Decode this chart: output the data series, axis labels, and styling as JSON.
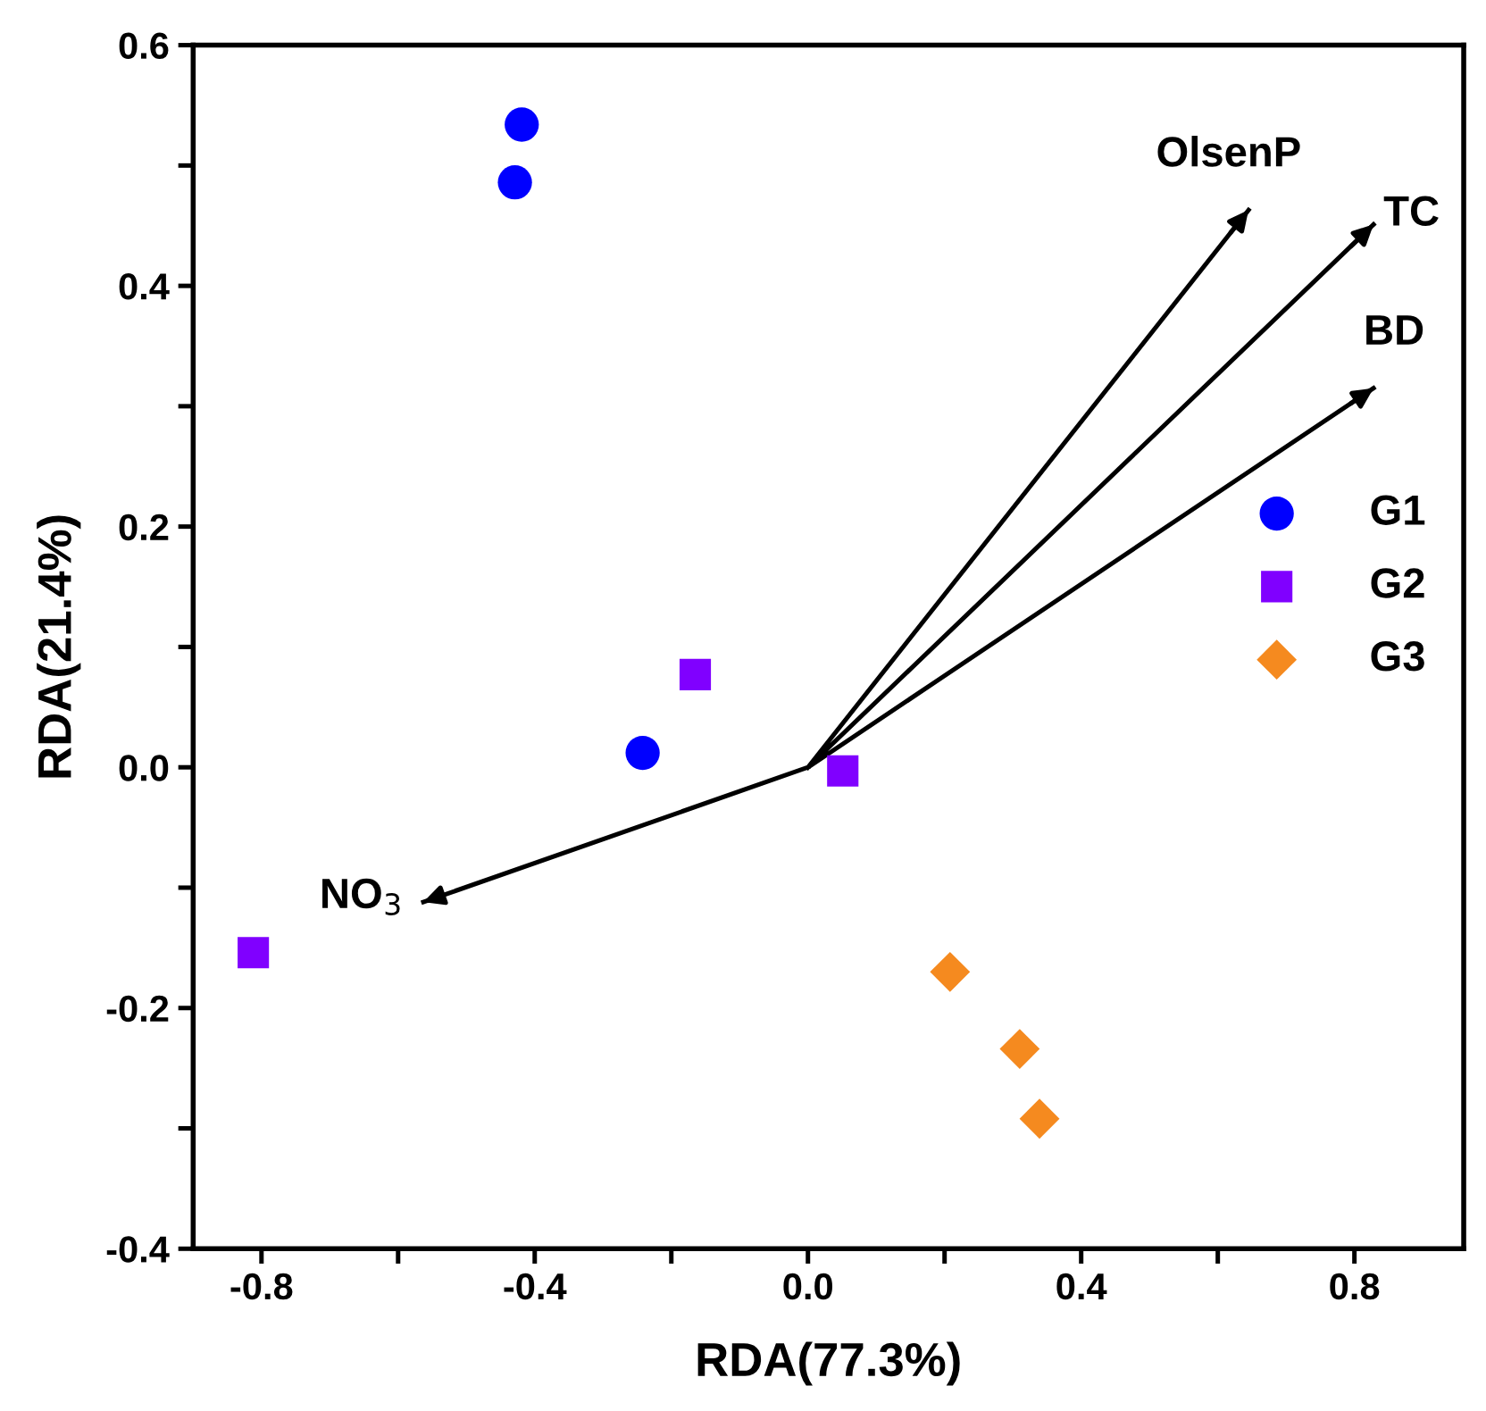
{
  "chart_data": {
    "type": "scatter",
    "xlabel": "RDA(77.3%)",
    "ylabel": "RDA(21.4%)",
    "series": [
      {
        "name": "G1",
        "color": "#0000ff",
        "marker": "circle",
        "x": [
          -0.419,
          -0.429,
          -0.242
        ],
        "values": [
          0.534,
          0.486,
          0.012
        ]
      },
      {
        "name": "G2",
        "color": "#8000ff",
        "marker": "square",
        "x": [
          -0.165,
          0.051,
          -0.812
        ],
        "values": [
          0.077,
          -0.003,
          -0.154
        ]
      },
      {
        "name": "G3",
        "color": "#f58a1f",
        "marker": "diamond",
        "x": [
          0.208,
          0.31,
          0.339
        ],
        "values": [
          -0.17,
          -0.234,
          -0.292
        ]
      },
      {
        "type": "line",
        "color": "#000000",
        "marker": "none",
        "x": [
          0,
          0.645,
          null,
          0,
          0.828,
          null,
          0,
          0.828,
          null,
          0,
          -0.563
        ],
        "values": [
          0,
          0.463,
          null,
          0,
          0.451,
          null,
          0,
          0.315,
          null,
          0,
          -0.112
        ]
      }
    ],
    "annotations": [
      "OlsenP",
      "TC",
      "BD",
      "NO$_{3}$"
    ],
    "xlim": [
      -0.9,
      0.96
    ],
    "ylim": [
      -0.4,
      0.6
    ],
    "xticks": [
      -0.8,
      {
        "value": -0.6,
        "label": null
      },
      -0.4,
      {
        "value": -0.2,
        "label": null
      },
      {
        "value": 0,
        "label": "0.0"
      },
      {
        "value": 0.2,
        "label": null
      },
      0.4,
      {
        "value": 0.6,
        "label": null
      },
      0.8
    ],
    "yticks": [
      -0.4,
      {
        "value": -0.3,
        "label": null
      },
      -0.2,
      {
        "value": -0.1,
        "label": null
      },
      {
        "value": 0,
        "label": "0.0"
      },
      {
        "value": 0.1,
        "label": null
      },
      0.2,
      {
        "value": 0.3,
        "label": null
      },
      0.4,
      {
        "value": 0.5,
        "label": null
      },
      0.6
    ],
    "grid": false,
    "legend": "right"
  }
}
